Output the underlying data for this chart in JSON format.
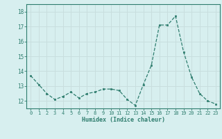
{
  "x": [
    0,
    1,
    2,
    3,
    4,
    5,
    6,
    7,
    8,
    9,
    10,
    11,
    12,
    13,
    14,
    15,
    16,
    17,
    18,
    19,
    20,
    21,
    22,
    23
  ],
  "y": [
    13.7,
    13.1,
    12.5,
    12.1,
    12.3,
    12.6,
    12.2,
    12.5,
    12.6,
    12.8,
    12.8,
    12.7,
    12.1,
    11.7,
    13.1,
    14.4,
    17.1,
    17.1,
    17.7,
    15.3,
    13.6,
    12.5,
    12.0,
    11.8
  ],
  "xlabel": "Humidex (Indice chaleur)",
  "ylim": [
    11.5,
    18.5
  ],
  "xlim": [
    -0.5,
    23.5
  ],
  "yticks": [
    12,
    13,
    14,
    15,
    16,
    17,
    18
  ],
  "xticks": [
    0,
    1,
    2,
    3,
    4,
    5,
    6,
    7,
    8,
    9,
    10,
    11,
    12,
    13,
    14,
    15,
    16,
    17,
    18,
    19,
    20,
    21,
    22,
    23
  ],
  "line_color": "#2e7d6e",
  "marker_color": "#2e7d6e",
  "bg_color": "#d7efef",
  "grid_color": "#c8dede",
  "axis_color": "#2e7d6e",
  "tick_label_color": "#2e7d6e",
  "xlabel_color": "#2e7d6e"
}
